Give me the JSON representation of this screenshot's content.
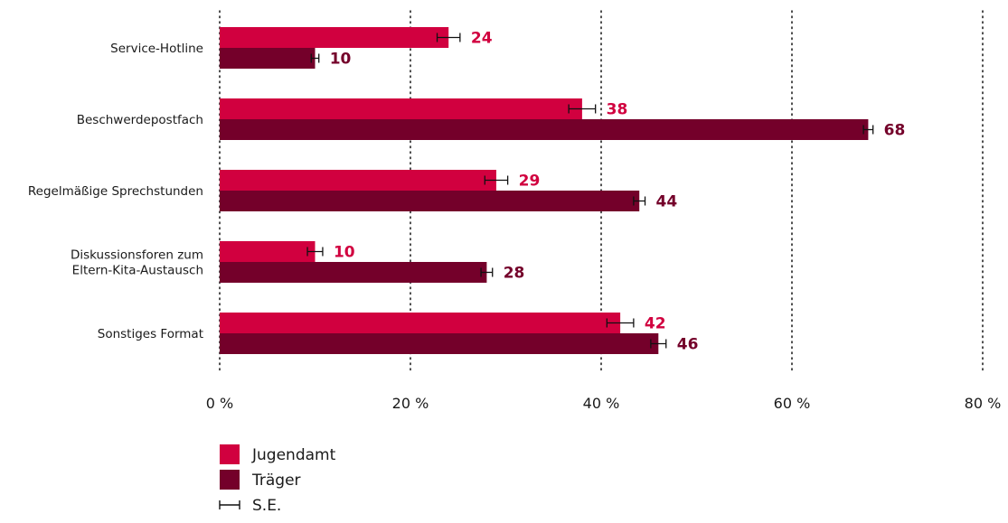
{
  "chart_data": {
    "type": "bar",
    "orientation": "horizontal",
    "categories": [
      [
        "Service-Hotline"
      ],
      [
        "Beschwerdepostfach"
      ],
      [
        "Regelmäßige Sprechstunden"
      ],
      [
        "Diskussionsforen zum",
        "Eltern-Kita-Austausch"
      ],
      [
        "Sonstiges Format"
      ]
    ],
    "series": [
      {
        "name": "Jugendamt",
        "color": "#d1003f",
        "values": [
          24,
          38,
          29,
          10,
          42
        ],
        "se": [
          1.2,
          1.4,
          1.2,
          0.8,
          1.4
        ]
      },
      {
        "name": "Träger",
        "color": "#74002a",
        "values": [
          10,
          68,
          44,
          28,
          46
        ],
        "se": [
          0.4,
          0.5,
          0.6,
          0.6,
          0.8
        ]
      }
    ],
    "xlim": [
      0,
      80
    ],
    "xticks": [
      0,
      20,
      40,
      60,
      80
    ],
    "tick_suffix": " %",
    "grid": "vertical dotted",
    "legend": {
      "position": "bottom-left",
      "error_label": "S.E."
    }
  }
}
